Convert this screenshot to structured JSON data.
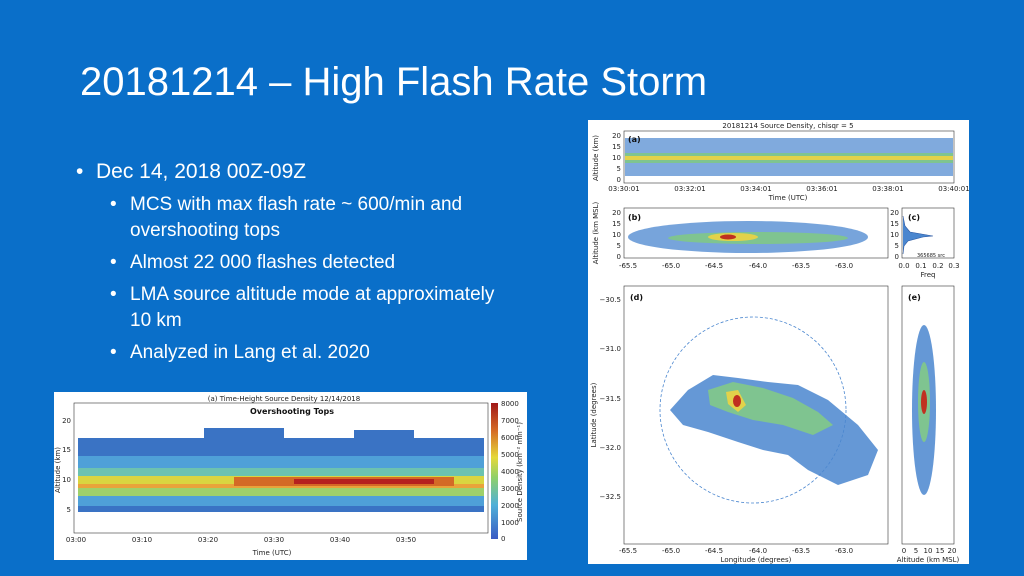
{
  "slide": {
    "title": "20181214 – High Flash Rate Storm",
    "bullets": [
      {
        "level": 1,
        "text": "Dec 14, 2018 00Z-09Z"
      },
      {
        "level": 2,
        "text": "MCS with max flash rate ~ 600/min and overshooting tops"
      },
      {
        "level": 2,
        "text": "Almost 22 000 flashes detected"
      },
      {
        "level": 2,
        "text": "LMA source altitude mode at approximately 10 km"
      },
      {
        "level": 2,
        "text": "Analyzed in Lang et al. 2020"
      }
    ]
  },
  "left_figure": {
    "title": "(a) Time-Height Source Density 12/14/2018",
    "annotation": "Overshooting Tops",
    "xlabel": "Time (UTC)",
    "ylabel": "Altitude (km)",
    "colorbar_label": "Source Density (km⁻² min⁻¹)",
    "colorbar_ticks": [
      "8000",
      "7000",
      "6000",
      "5000",
      "4000",
      "3000",
      "2000",
      "1000",
      "0"
    ],
    "yticks": [
      "20",
      "15",
      "10",
      "5"
    ],
    "xticks": [
      "03:00",
      "03:10",
      "03:20",
      "03:30",
      "03:40",
      "03:50"
    ]
  },
  "right_figure": {
    "title": "20181214 Source Density, chisqr = 5",
    "panel_a": {
      "label": "(a)",
      "ylabel": "Altitude (km)",
      "xlabel": "Time (UTC)",
      "yticks": [
        "20",
        "15",
        "10",
        "5",
        "0"
      ],
      "xticks": [
        "03:30:01",
        "03:32:01",
        "03:34:01",
        "03:36:01",
        "03:38:01",
        "03:40:01"
      ]
    },
    "panel_b": {
      "label": "(b)",
      "ylabel": "Altitude (km MSL)",
      "yticks": [
        "20",
        "15",
        "10",
        "5",
        "0"
      ],
      "xticks": [
        "-65.5",
        "-65.0",
        "-64.5",
        "-64.0",
        "-63.5",
        "-63.0"
      ]
    },
    "panel_c": {
      "label": "(c)",
      "xlabel": "Freq",
      "count": "365685 src",
      "yticks": [
        "20",
        "15",
        "10",
        "5",
        "0"
      ],
      "xticks": [
        "0.0",
        "0.1",
        "0.2",
        "0.3"
      ]
    },
    "panel_d": {
      "label": "(d)",
      "ylabel": "Latitude (degrees)",
      "xlabel": "Longitude (degrees)",
      "yticks": [
        "−30.5",
        "−31.0",
        "−31.5",
        "−32.0",
        "−32.5"
      ],
      "xticks": [
        "-65.5",
        "-65.0",
        "-64.5",
        "-64.0",
        "-63.5",
        "-63.0"
      ]
    },
    "panel_e": {
      "label": "(e)",
      "xlabel": "Altitude (km MSL)",
      "xticks": [
        "0",
        "5",
        "10",
        "15",
        "20"
      ]
    }
  },
  "colors": {
    "background": "#0a6fc9",
    "text": "#ffffff"
  }
}
